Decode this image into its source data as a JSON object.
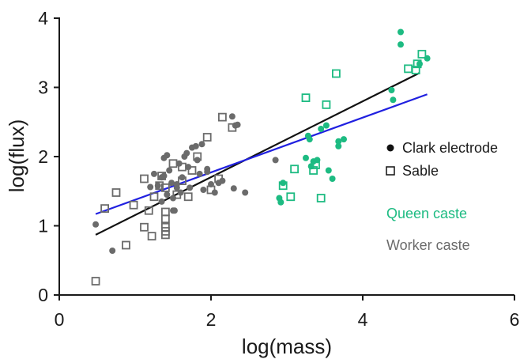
{
  "chart_data": {
    "type": "scatter",
    "xlabel": "log(mass)",
    "ylabel": "log(flux)",
    "xlim": [
      0,
      6
    ],
    "ylim": [
      0,
      4
    ],
    "xticks": [
      "0",
      "2",
      "4",
      "6"
    ],
    "yticks": [
      "0",
      "1",
      "2",
      "3",
      "4"
    ],
    "grid": false,
    "colors": {
      "worker": "#6b6b6b",
      "queen": "#1dbb82",
      "fit_black": "#111111",
      "fit_blue": "#2020e0",
      "axis": "#1a1a1a"
    },
    "legend": {
      "position": "right",
      "items": [
        {
          "marker": "filled-circle",
          "label": "Clark electrode"
        },
        {
          "marker": "open-square",
          "label": "Sable"
        }
      ]
    },
    "caste_labels": [
      {
        "label": "Queen caste",
        "color": "#1dbb82"
      },
      {
        "label": "Worker caste",
        "color": "#6b6b6b"
      }
    ],
    "series": [
      {
        "caste": "worker",
        "method": "clark",
        "points": [
          [
            0.48,
            1.02
          ],
          [
            0.7,
            0.64
          ],
          [
            1.2,
            1.56
          ],
          [
            1.25,
            1.75
          ],
          [
            1.35,
            1.7
          ],
          [
            1.38,
            1.98
          ],
          [
            1.42,
            2.02
          ],
          [
            1.45,
            1.8
          ],
          [
            1.48,
            1.62
          ],
          [
            1.5,
            1.4
          ],
          [
            1.52,
            1.22
          ],
          [
            1.35,
            1.35
          ],
          [
            1.55,
            1.6
          ],
          [
            1.58,
            1.9
          ],
          [
            1.6,
            1.48
          ],
          [
            1.62,
            1.7
          ],
          [
            1.65,
            2.0
          ],
          [
            1.68,
            2.05
          ],
          [
            1.7,
            1.85
          ],
          [
            1.72,
            1.55
          ],
          [
            1.75,
            2.13
          ],
          [
            1.8,
            2.15
          ],
          [
            1.82,
            1.95
          ],
          [
            1.85,
            1.75
          ],
          [
            1.88,
            2.18
          ],
          [
            1.9,
            1.52
          ],
          [
            1.95,
            1.82
          ],
          [
            2.0,
            1.6
          ],
          [
            2.05,
            1.48
          ],
          [
            2.1,
            1.62
          ],
          [
            2.15,
            1.65
          ],
          [
            2.28,
            2.58
          ],
          [
            2.32,
            2.45
          ],
          [
            2.35,
            2.46
          ],
          [
            2.3,
            1.54
          ],
          [
            2.45,
            1.48
          ],
          [
            2.85,
            1.95
          ],
          [
            1.42,
            1.45
          ],
          [
            1.55,
            1.55
          ],
          [
            1.3,
            1.58
          ],
          [
            1.38,
            1.72
          ],
          [
            1.95,
            1.78
          ],
          [
            1.5,
            1.22
          ]
        ]
      },
      {
        "caste": "worker",
        "method": "sable",
        "points": [
          [
            0.48,
            0.2
          ],
          [
            0.6,
            1.25
          ],
          [
            0.75,
            1.48
          ],
          [
            0.88,
            0.72
          ],
          [
            0.98,
            1.3
          ],
          [
            1.12,
            1.68
          ],
          [
            1.12,
            0.98
          ],
          [
            1.18,
            1.22
          ],
          [
            1.22,
            0.85
          ],
          [
            1.25,
            1.42
          ],
          [
            1.32,
            1.58
          ],
          [
            1.35,
            1.72
          ],
          [
            1.4,
            1.55
          ],
          [
            1.4,
            1.2
          ],
          [
            1.4,
            1.1
          ],
          [
            1.4,
            0.98
          ],
          [
            1.4,
            0.92
          ],
          [
            1.4,
            0.87
          ],
          [
            1.5,
            1.9
          ],
          [
            1.55,
            1.45
          ],
          [
            1.62,
            1.65
          ],
          [
            1.7,
            1.42
          ],
          [
            1.82,
            2.0
          ],
          [
            1.95,
            2.28
          ],
          [
            2.0,
            1.52
          ],
          [
            2.1,
            1.68
          ],
          [
            2.15,
            2.57
          ],
          [
            2.28,
            2.42
          ],
          [
            1.62,
            1.85
          ],
          [
            1.75,
            1.8
          ]
        ]
      },
      {
        "caste": "queen",
        "method": "clark",
        "points": [
          [
            2.92,
            1.34
          ],
          [
            2.95,
            1.62
          ],
          [
            3.25,
            1.98
          ],
          [
            3.28,
            2.3
          ],
          [
            3.3,
            2.25
          ],
          [
            3.32,
            1.86
          ],
          [
            3.35,
            1.93
          ],
          [
            3.4,
            1.95
          ],
          [
            3.45,
            2.4
          ],
          [
            3.52,
            2.45
          ],
          [
            3.55,
            1.8
          ],
          [
            3.6,
            1.68
          ],
          [
            3.68,
            2.15
          ],
          [
            3.68,
            2.22
          ],
          [
            3.75,
            2.25
          ],
          [
            4.38,
            2.96
          ],
          [
            4.4,
            2.82
          ],
          [
            4.5,
            3.8
          ],
          [
            4.5,
            3.62
          ],
          [
            4.75,
            3.34
          ],
          [
            4.85,
            3.42
          ],
          [
            2.9,
            1.4
          ]
        ]
      },
      {
        "caste": "queen",
        "method": "sable",
        "points": [
          [
            2.95,
            1.58
          ],
          [
            3.05,
            1.42
          ],
          [
            3.1,
            1.82
          ],
          [
            3.25,
            2.85
          ],
          [
            3.35,
            1.8
          ],
          [
            3.38,
            1.88
          ],
          [
            3.45,
            1.4
          ],
          [
            3.52,
            2.75
          ],
          [
            3.65,
            3.2
          ],
          [
            4.6,
            3.27
          ],
          [
            4.7,
            3.25
          ],
          [
            4.72,
            3.34
          ],
          [
            4.78,
            3.48
          ]
        ]
      }
    ],
    "fit_lines": [
      {
        "color": "black",
        "x": [
          0.48,
          4.75
        ],
        "y": [
          0.87,
          3.21
        ]
      },
      {
        "color": "blue",
        "x": [
          0.48,
          4.85
        ],
        "y": [
          1.17,
          2.9
        ]
      }
    ]
  }
}
